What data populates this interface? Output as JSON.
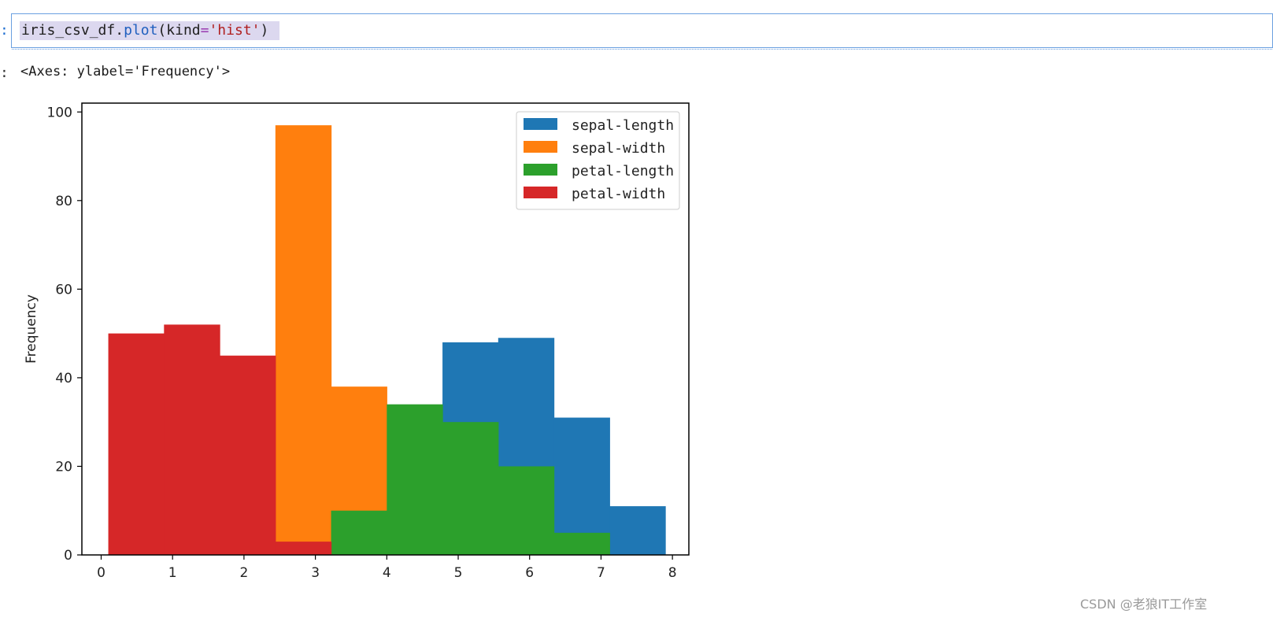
{
  "cell": {
    "in_marker": ":",
    "out_marker": ":",
    "code": {
      "variable": "iris_csv_df",
      "dot": ".",
      "method": "plot",
      "paren_open": "(",
      "kwarg": "kind",
      "equals": "=",
      "string": "'hist'",
      "paren_close": ")"
    },
    "output_repr": "<Axes: ylabel='Frequency'>"
  },
  "chart_data": {
    "type": "bar",
    "title": "",
    "xlabel": "",
    "ylabel": "Frequency",
    "xlim": [
      -0.27,
      8.23
    ],
    "ylim": [
      0,
      102
    ],
    "xticks": [
      "0",
      "1",
      "2",
      "3",
      "4",
      "5",
      "6",
      "7",
      "8"
    ],
    "yticks": [
      "0",
      "20",
      "40",
      "60",
      "80",
      "100"
    ],
    "bin_edges": [
      0.1,
      0.88,
      1.66,
      2.44,
      3.22,
      4.0,
      4.78,
      5.56,
      6.34,
      7.12,
      7.9
    ],
    "legend_position": "top-right",
    "series": [
      {
        "name": "sepal-length",
        "color": "#1f77b4",
        "values": [
          0,
          0,
          0,
          0,
          0,
          0,
          48,
          49,
          31,
          11
        ]
      },
      {
        "name": "sepal-width",
        "color": "#ff7f0e",
        "values": [
          0,
          0,
          0,
          97,
          38,
          0,
          0,
          0,
          0,
          0
        ]
      },
      {
        "name": "petal-length",
        "color": "#2ca02c",
        "values": [
          0,
          0,
          0,
          0,
          10,
          34,
          30,
          20,
          5,
          0
        ]
      },
      {
        "name": "petal-width",
        "color": "#d62728",
        "values": [
          50,
          52,
          45,
          3,
          0,
          0,
          0,
          0,
          0,
          0
        ]
      }
    ]
  },
  "watermark": "CSDN @老狼IT工作室"
}
